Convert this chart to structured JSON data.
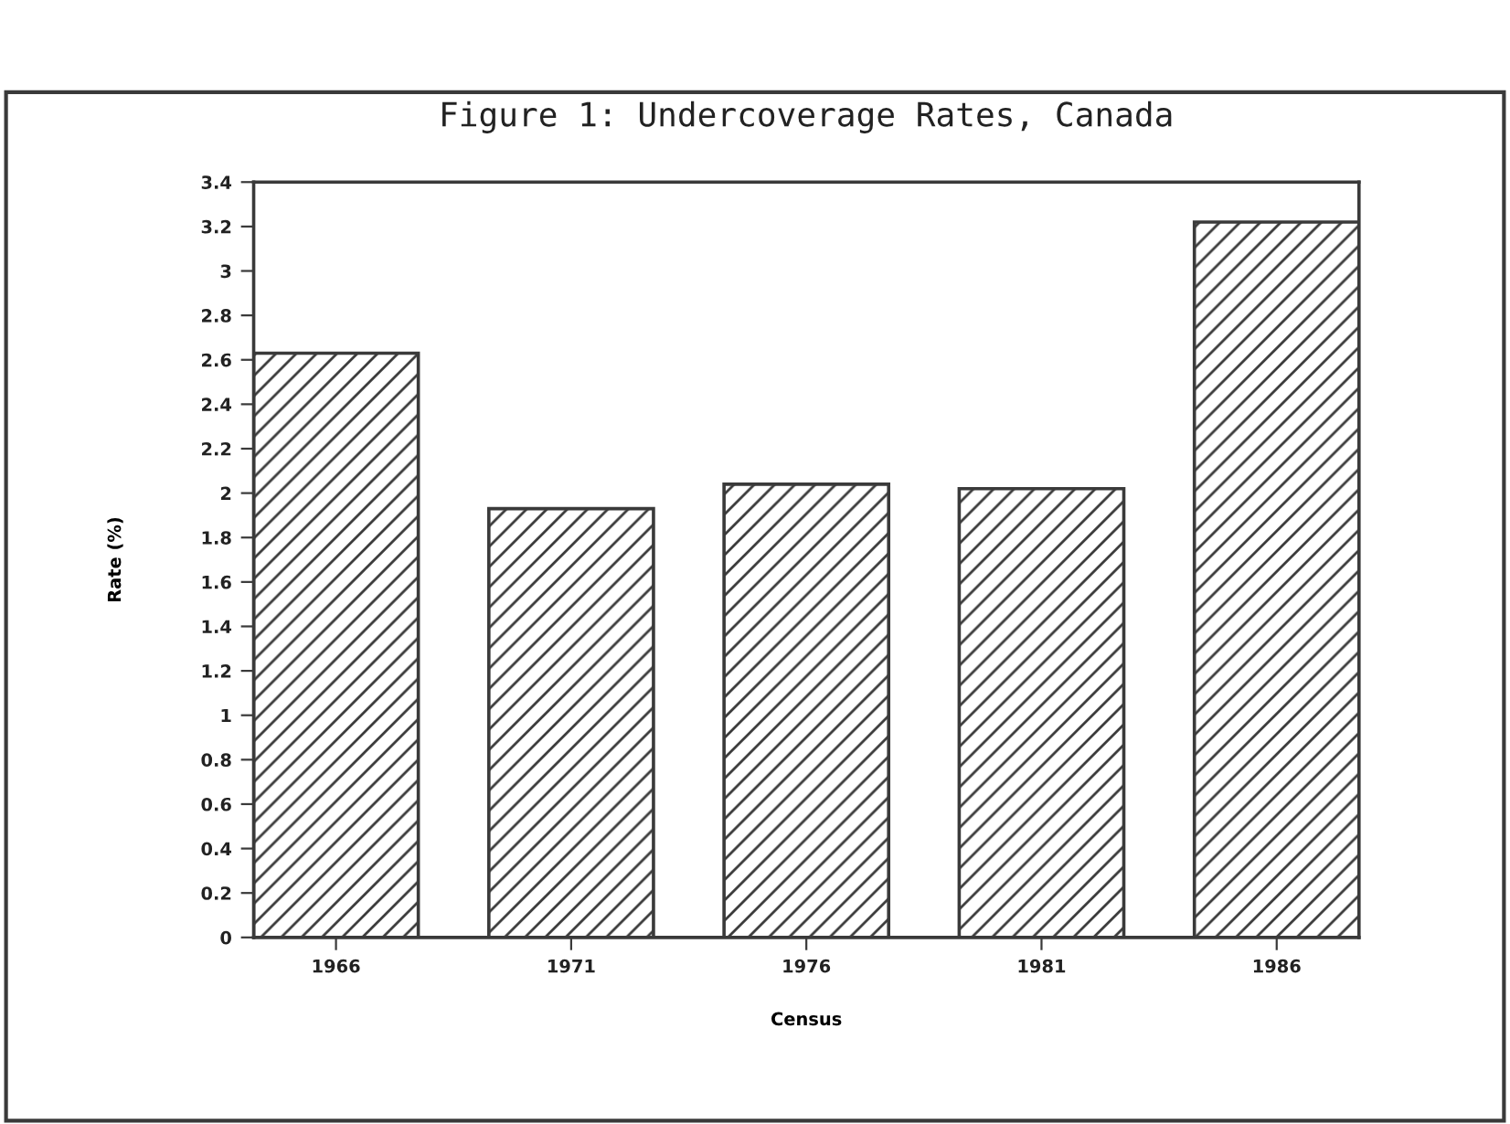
{
  "chart_data": {
    "type": "bar",
    "title": "Figure 1: Undercoverage Rates, Canada",
    "xlabel": "Census",
    "ylabel": "Rate (%)",
    "categories": [
      "1966",
      "1971",
      "1976",
      "1981",
      "1986"
    ],
    "values": [
      2.63,
      1.93,
      2.04,
      2.02,
      3.22
    ],
    "color": "#3a3a3a",
    "ylim": [
      0,
      3.4
    ],
    "yticks": [
      0,
      0.2,
      0.4,
      0.6,
      0.8,
      1,
      1.2,
      1.4,
      1.6,
      1.8,
      2,
      2.2,
      2.4,
      2.6,
      2.8,
      3,
      3.2,
      3.4
    ],
    "grid": false
  }
}
